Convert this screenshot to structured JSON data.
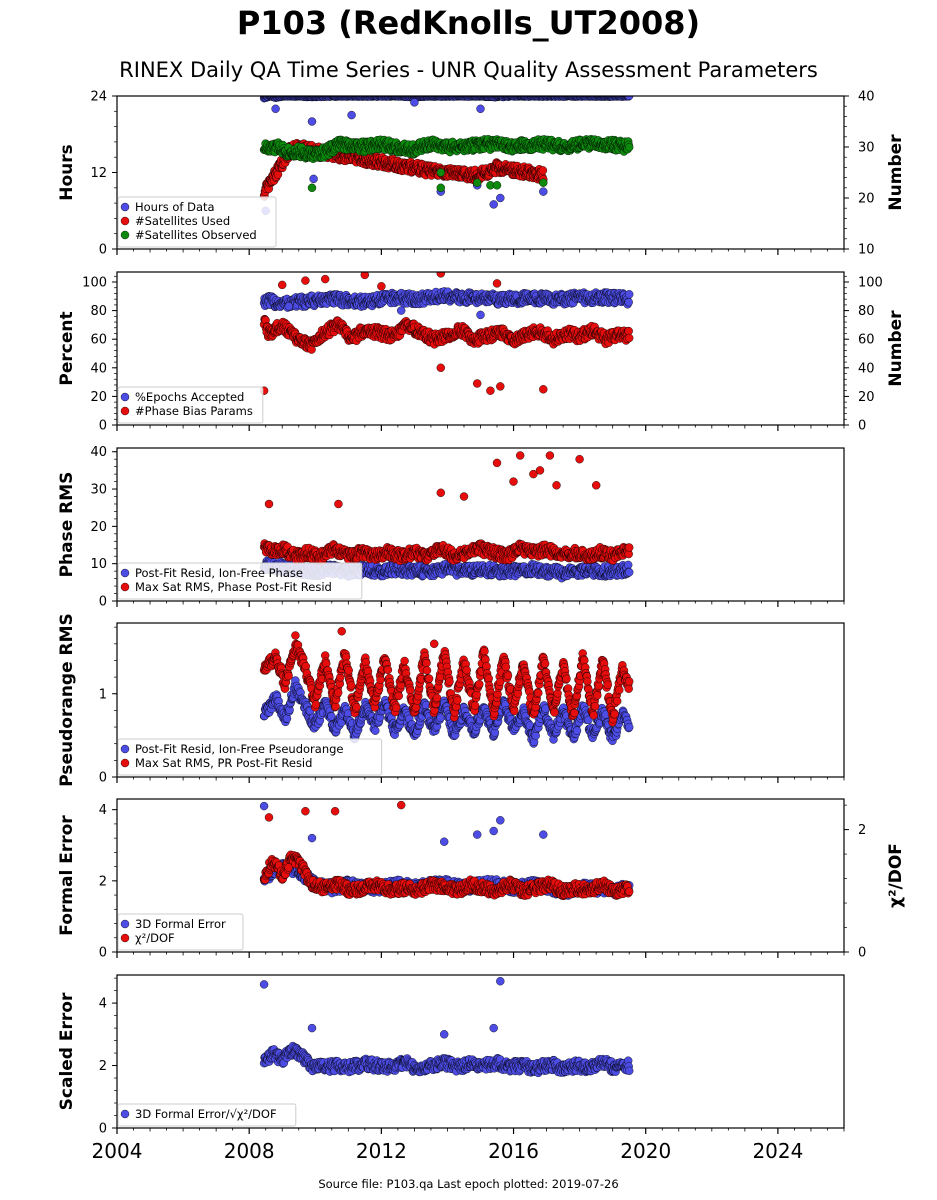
{
  "title": "P103 (RedKnolls_UT2008)",
  "subtitle": "RINEX Daily QA Time Series - UNR Quality Assessment Parameters",
  "footer": "Source file: P103.qa Last epoch plotted: 2019-07-26",
  "colors": {
    "blue": "#4d4de6",
    "red": "#e60d0d",
    "green": "#0d8a0d"
  },
  "x_axis": {
    "xlim": [
      2004.0,
      2026.0
    ],
    "ticks": [
      2004,
      2008,
      2012,
      2016,
      2020,
      2024
    ],
    "tick_labels": [
      "2004",
      "2008",
      "2012",
      "2016",
      "2020",
      "2024"
    ]
  },
  "chart_data": [
    {
      "id": "hours",
      "type": "scatter",
      "ylabel": "Hours",
      "ylim": [
        0,
        24
      ],
      "yticks": [
        0,
        12,
        24
      ],
      "ylabel_right": "Number",
      "ylim_right": [
        10,
        40
      ],
      "yticks_right": [
        10,
        20,
        30,
        40
      ],
      "legend_position": "bottom-left",
      "series": [
        {
          "name": "Hours of Data",
          "color": "blue",
          "axis": "left",
          "x": [
            2008.45,
            2008.6,
            2008.8,
            2009.0,
            2009.4,
            2009.9,
            2010.5,
            2011.0,
            2011.5,
            2012.0,
            2012.5,
            2013.0,
            2013.5,
            2014.0,
            2014.5,
            2015.0,
            2015.5,
            2016.0,
            2016.5,
            2017.0,
            2017.5,
            2018.0,
            2018.5,
            2019.0,
            2019.5,
            2008.5,
            2008.8,
            2009.9,
            2009.95,
            2011.1,
            2013.0,
            2013.8,
            2014.9,
            2015.4,
            2015.6,
            2016.9,
            2015.0
          ],
          "y": [
            23.7,
            24.0,
            23.8,
            24.0,
            24.0,
            23.9,
            24.0,
            24.0,
            24.0,
            24.0,
            24.0,
            23.9,
            24.0,
            24.0,
            24.0,
            24.0,
            23.9,
            24.0,
            24.0,
            24.0,
            24.0,
            24.0,
            24.0,
            24.0,
            24.0,
            6.0,
            22.0,
            20.0,
            11.0,
            21.0,
            23.0,
            9.0,
            10.0,
            7.0,
            8.0,
            9.0,
            22.0
          ]
        },
        {
          "name": "#Satellites Used",
          "color": "red",
          "axis": "right",
          "x": [
            2008.45,
            2009.3,
            2013.8,
            2014.9,
            2015.3,
            2015.5,
            2016.9
          ],
          "y": [
            21.0,
            30.0,
            25.0,
            24.5,
            25.0,
            26.0,
            24.5
          ]
        },
        {
          "name": "#Satellites Observed",
          "color": "green",
          "axis": "right",
          "x": [
            2008.45,
            2008.6,
            2008.9,
            2009.2,
            2009.6,
            2009.9,
            2010.3,
            2010.7,
            2011.0,
            2011.5,
            2012.0,
            2012.5,
            2013.0,
            2013.5,
            2014.0,
            2014.5,
            2015.0,
            2015.5,
            2016.0,
            2016.5,
            2017.0,
            2017.5,
            2018.0,
            2018.5,
            2019.0,
            2019.5,
            2009.9,
            2013.8,
            2013.8,
            2014.9,
            2015.3,
            2015.5,
            2016.9
          ],
          "y": [
            30.0,
            29.5,
            30.0,
            29.0,
            29.0,
            28.5,
            29.0,
            30.5,
            30.5,
            30.0,
            30.5,
            30.0,
            29.5,
            30.5,
            30.0,
            30.0,
            30.5,
            30.5,
            30.0,
            30.5,
            30.5,
            30.0,
            30.5,
            30.5,
            30.5,
            30.0,
            22.0,
            22.0,
            25.0,
            23.0,
            22.5,
            22.5,
            23.0
          ]
        }
      ]
    },
    {
      "id": "percent",
      "type": "scatter",
      "ylabel": "Percent",
      "ylim": [
        0,
        107
      ],
      "yticks": [
        0,
        20,
        40,
        60,
        80,
        100
      ],
      "ylabel_right": "Number",
      "ylim_right": [
        0,
        107
      ],
      "yticks_right": [
        0,
        20,
        40,
        60,
        80,
        100
      ],
      "legend_position": "bottom-left",
      "series": [
        {
          "name": "%Epochs Accepted",
          "color": "blue",
          "axis": "left",
          "x": [
            2008.45,
            2009.0,
            2009.5,
            2010.0,
            2010.5,
            2011.0,
            2011.5,
            2012.0,
            2012.5,
            2013.0,
            2013.5,
            2014.0,
            2014.5,
            2015.0,
            2015.5,
            2016.0,
            2016.5,
            2017.0,
            2017.5,
            2018.0,
            2018.5,
            2019.0,
            2019.5,
            2009.2,
            2012.6,
            2015.0
          ],
          "y": [
            87,
            85,
            86,
            87,
            88,
            87,
            86,
            88,
            89,
            88,
            89,
            90,
            89,
            89,
            88,
            88,
            89,
            88,
            88,
            89,
            89,
            89,
            88,
            83,
            80,
            77
          ]
        },
        {
          "name": "#Phase Bias Params",
          "color": "red",
          "axis": "right",
          "x": [
            2008.45,
            2008.6,
            2009.0,
            2009.4,
            2009.9,
            2010.3,
            2010.7,
            2011.1,
            2011.5,
            2012.0,
            2012.4,
            2012.8,
            2013.2,
            2013.6,
            2014.0,
            2014.4,
            2014.8,
            2015.2,
            2015.6,
            2016.0,
            2016.4,
            2016.8,
            2017.2,
            2017.6,
            2018.0,
            2018.4,
            2018.8,
            2019.2,
            2019.5,
            2008.45,
            2009.7,
            2010.3,
            2011.5,
            2013.8,
            2013.8,
            2014.9,
            2015.3,
            2015.6,
            2016.9,
            2009.0,
            2012.0,
            2015.5
          ],
          "y": [
            72,
            64,
            70,
            61,
            56,
            65,
            70,
            60,
            67,
            64,
            62,
            70,
            64,
            60,
            62,
            67,
            60,
            62,
            65,
            58,
            63,
            66,
            60,
            64,
            62,
            66,
            60,
            64,
            62,
            24,
            101,
            102,
            105,
            106,
            40,
            29,
            24,
            27,
            25,
            98,
            97,
            99
          ]
        }
      ]
    },
    {
      "id": "phase_rms",
      "type": "scatter",
      "ylabel": "Phase RMS",
      "ylim": [
        0,
        41
      ],
      "yticks": [
        0,
        10,
        20,
        30,
        40
      ],
      "legend_position": "bottom-left",
      "series": [
        {
          "name": "Post-Fit Resid, Ion-Free Phase",
          "color": "blue",
          "axis": "left",
          "x": [
            2008.45,
            2009.0,
            2009.5,
            2010.0,
            2010.5,
            2011.0,
            2011.5,
            2012.0,
            2012.5,
            2013.0,
            2013.5,
            2014.0,
            2014.5,
            2015.0,
            2015.5,
            2016.0,
            2016.5,
            2017.0,
            2017.5,
            2018.0,
            2018.5,
            2019.0,
            2019.5
          ],
          "y": [
            9.5,
            9.0,
            8.5,
            8.0,
            8.5,
            8.0,
            8.5,
            8.0,
            8.5,
            8.0,
            8.0,
            8.5,
            8.0,
            8.5,
            8.0,
            8.0,
            8.5,
            8.0,
            7.5,
            8.0,
            8.0,
            8.0,
            8.5
          ]
        },
        {
          "name": "Max Sat RMS, Phase Post-Fit Resid",
          "color": "red",
          "axis": "left",
          "x": [
            2008.45,
            2008.7,
            2009.0,
            2009.4,
            2009.8,
            2010.2,
            2010.6,
            2011.0,
            2011.4,
            2011.8,
            2012.2,
            2012.6,
            2013.0,
            2013.4,
            2013.8,
            2014.2,
            2014.6,
            2015.0,
            2015.4,
            2015.8,
            2016.2,
            2016.6,
            2017.0,
            2017.4,
            2017.8,
            2018.2,
            2018.6,
            2019.0,
            2019.5,
            2008.6,
            2010.7,
            2013.8,
            2014.5,
            2015.5,
            2016.0,
            2016.2,
            2016.6,
            2016.8,
            2017.1,
            2017.3,
            2018.0,
            2018.5
          ],
          "y": [
            15,
            13,
            14,
            12,
            13,
            12,
            14,
            12,
            13,
            12,
            13,
            12,
            13,
            12,
            14,
            12,
            13,
            14,
            13,
            12,
            14,
            13,
            14,
            12,
            13,
            12,
            13,
            12,
            14,
            26,
            26,
            29,
            28,
            37,
            32,
            39,
            34,
            35,
            39,
            31,
            38,
            31
          ]
        }
      ]
    },
    {
      "id": "pseudorange_rms",
      "type": "scatter",
      "ylabel": "Pseudorange RMS",
      "ylim": [
        0,
        1.85
      ],
      "yticks": [
        0,
        1
      ],
      "legend_position": "bottom-left",
      "series": [
        {
          "name": "Post-Fit Resid, Ion-Free Pseudorange",
          "color": "blue",
          "axis": "left",
          "x": [
            2008.45,
            2008.8,
            2009.1,
            2009.4,
            2009.7,
            2010.0,
            2010.3,
            2010.6,
            2010.9,
            2011.2,
            2011.5,
            2011.8,
            2012.1,
            2012.4,
            2012.7,
            2013.0,
            2013.3,
            2013.6,
            2013.9,
            2014.2,
            2014.5,
            2014.8,
            2015.1,
            2015.4,
            2015.7,
            2016.0,
            2016.3,
            2016.6,
            2016.9,
            2017.2,
            2017.5,
            2017.8,
            2018.1,
            2018.4,
            2018.7,
            2019.0,
            2019.3,
            2019.5
          ],
          "y": [
            0.75,
            0.95,
            0.7,
            1.1,
            0.85,
            0.6,
            0.9,
            0.55,
            0.8,
            0.5,
            0.85,
            0.6,
            0.9,
            0.55,
            0.8,
            0.5,
            0.85,
            0.55,
            0.9,
            0.5,
            0.8,
            0.55,
            0.85,
            0.5,
            0.9,
            0.55,
            0.8,
            0.45,
            0.85,
            0.5,
            0.8,
            0.45,
            0.85,
            0.5,
            0.8,
            0.45,
            0.75,
            0.6
          ]
        },
        {
          "name": "Max Sat RMS, PR Post-Fit Resid",
          "color": "red",
          "axis": "left",
          "x": [
            2008.45,
            2008.8,
            2009.1,
            2009.4,
            2009.7,
            2010.0,
            2010.3,
            2010.6,
            2010.9,
            2011.2,
            2011.5,
            2011.8,
            2012.1,
            2012.4,
            2012.7,
            2013.0,
            2013.3,
            2013.6,
            2013.9,
            2014.2,
            2014.5,
            2014.8,
            2015.1,
            2015.4,
            2015.7,
            2016.0,
            2016.3,
            2016.6,
            2016.9,
            2017.2,
            2017.5,
            2017.8,
            2018.1,
            2018.4,
            2018.7,
            2019.0,
            2019.3,
            2019.5,
            2009.4,
            2010.8,
            2013.6
          ],
          "y": [
            1.3,
            1.45,
            1.1,
            1.6,
            1.3,
            0.9,
            1.4,
            0.85,
            1.5,
            0.8,
            1.4,
            0.85,
            1.45,
            0.8,
            1.35,
            0.75,
            1.45,
            0.8,
            1.5,
            0.75,
            1.4,
            0.8,
            1.5,
            0.75,
            1.45,
            0.8,
            1.4,
            0.7,
            1.45,
            0.75,
            1.35,
            0.7,
            1.45,
            0.75,
            1.4,
            0.7,
            1.3,
            1.1,
            1.7,
            1.75,
            1.6
          ]
        }
      ]
    },
    {
      "id": "formal_error",
      "type": "scatter",
      "ylabel": "Formal Error",
      "ylim": [
        0,
        4.3
      ],
      "yticks": [
        0,
        2,
        4
      ],
      "ylabel_right": "χ²/DOF",
      "ylim_right": [
        0,
        2.5
      ],
      "yticks_right": [
        0,
        2
      ],
      "legend_position": "bottom-left",
      "series": [
        {
          "name": "3D Formal Error",
          "color": "blue",
          "axis": "left",
          "x": [
            2008.45,
            2008.8,
            2009.2,
            2009.6,
            2010.0,
            2010.5,
            2011.0,
            2011.5,
            2012.0,
            2012.5,
            2013.0,
            2013.5,
            2014.0,
            2014.5,
            2015.0,
            2015.5,
            2016.0,
            2016.5,
            2017.0,
            2017.5,
            2018.0,
            2018.5,
            2019.0,
            2019.5,
            2008.45,
            2009.9,
            2013.9,
            2014.9,
            2015.4,
            2015.6,
            2016.9
          ],
          "y": [
            2.1,
            2.3,
            2.4,
            2.2,
            1.9,
            1.8,
            1.9,
            1.8,
            1.8,
            1.9,
            1.8,
            1.9,
            1.9,
            1.8,
            1.9,
            1.9,
            1.8,
            1.9,
            1.8,
            1.7,
            1.8,
            1.8,
            1.7,
            1.8,
            4.1,
            3.2,
            3.1,
            3.3,
            3.4,
            3.7,
            3.3
          ]
        },
        {
          "name": "χ²/DOF",
          "color": "red",
          "axis": "right",
          "x": [
            2008.45,
            2008.7,
            2009.0,
            2009.3,
            2009.6,
            2009.9,
            2010.3,
            2010.7,
            2011.1,
            2011.5,
            2011.9,
            2012.3,
            2012.7,
            2013.1,
            2013.5,
            2013.9,
            2014.3,
            2014.7,
            2015.1,
            2015.5,
            2015.9,
            2016.3,
            2016.7,
            2017.1,
            2017.5,
            2017.9,
            2018.3,
            2018.7,
            2019.1,
            2019.5,
            2008.6,
            2009.7,
            2010.6,
            2012.6
          ],
          "y": [
            1.2,
            1.5,
            1.25,
            1.55,
            1.4,
            1.1,
            1.05,
            1.1,
            1.0,
            1.05,
            1.1,
            1.0,
            1.05,
            1.0,
            1.1,
            1.05,
            1.0,
            1.1,
            1.05,
            1.0,
            1.1,
            1.0,
            1.05,
            1.1,
            1.0,
            1.05,
            1.0,
            1.1,
            1.0,
            1.05,
            2.2,
            2.3,
            2.3,
            2.4
          ]
        }
      ]
    },
    {
      "id": "scaled_error",
      "type": "scatter",
      "ylabel": "Scaled Error",
      "ylim": [
        0,
        4.9
      ],
      "yticks": [
        0,
        2,
        4
      ],
      "legend_position": "bottom-left",
      "series": [
        {
          "name": "3D Formal Error/√χ²/DOF",
          "color": "blue",
          "axis": "left",
          "x": [
            2008.45,
            2008.7,
            2009.0,
            2009.3,
            2009.6,
            2009.9,
            2010.3,
            2010.7,
            2011.1,
            2011.5,
            2011.9,
            2012.3,
            2012.7,
            2013.1,
            2013.5,
            2013.9,
            2014.3,
            2014.7,
            2015.1,
            2015.5,
            2015.9,
            2016.3,
            2016.7,
            2017.1,
            2017.5,
            2017.9,
            2018.3,
            2018.7,
            2019.1,
            2019.5,
            2008.45,
            2015.6,
            2015.4,
            2009.9,
            2013.9
          ],
          "y": [
            2.1,
            2.4,
            2.2,
            2.5,
            2.3,
            2.0,
            1.95,
            2.0,
            1.95,
            2.05,
            2.0,
            1.95,
            2.1,
            1.9,
            2.0,
            2.1,
            1.95,
            2.05,
            2.0,
            2.1,
            1.95,
            2.0,
            1.9,
            2.05,
            1.9,
            2.0,
            1.95,
            2.1,
            1.9,
            2.0,
            4.6,
            4.7,
            3.2,
            3.2,
            3.0
          ]
        }
      ]
    }
  ]
}
